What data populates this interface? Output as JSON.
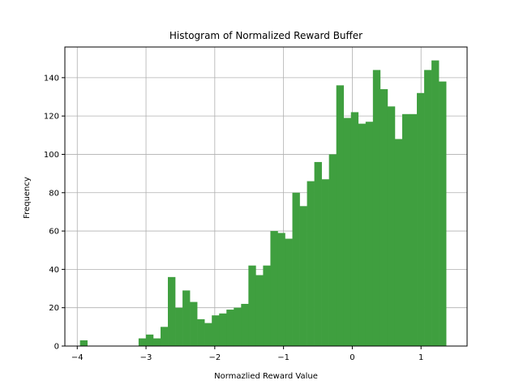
{
  "chart_data": {
    "type": "bar",
    "title": "Histogram of Normalized Reward Buffer",
    "xlabel": "Normazlied Reward Value",
    "ylabel": "Frequency",
    "xlim": [
      -4.18,
      1.67
    ],
    "ylim": [
      0,
      156
    ],
    "grid": true,
    "bar_color": "#3f9f3f",
    "grid_color": "#b0b0b0",
    "x_ticks": [
      -4,
      -3,
      -2,
      -1,
      0,
      1
    ],
    "x_tick_labels": [
      "−4",
      "−3",
      "−2",
      "−1",
      "0",
      "1"
    ],
    "y_ticks": [
      0,
      20,
      40,
      60,
      80,
      100,
      120,
      140
    ],
    "y_tick_labels": [
      "0",
      "20",
      "40",
      "60",
      "80",
      "100",
      "120",
      "140"
    ],
    "bin_start": -3.96,
    "bin_width": 0.1065,
    "values": [
      3,
      0,
      0,
      0,
      0,
      0,
      0,
      0,
      4,
      6,
      4,
      10,
      36,
      20,
      29,
      23,
      14,
      12,
      16,
      17,
      19,
      20,
      22,
      42,
      37,
      42,
      60,
      59,
      56,
      80,
      73,
      86,
      96,
      87,
      100,
      136,
      119,
      122,
      116,
      117,
      144,
      134,
      125,
      108,
      121,
      121,
      132,
      144,
      149,
      138
    ]
  }
}
